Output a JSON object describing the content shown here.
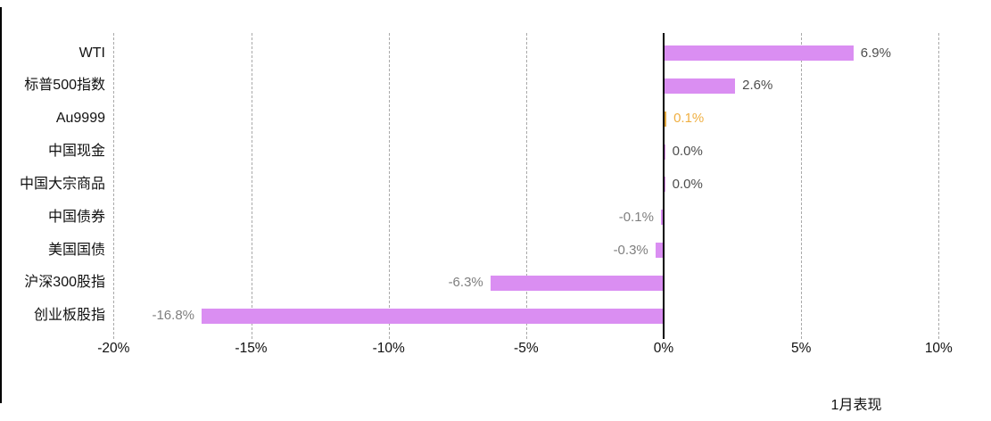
{
  "chart_data": {
    "type": "bar",
    "orientation": "horizontal",
    "title": "",
    "xlabel": "1月表现",
    "ylabel": "",
    "xlim": [
      -20,
      10
    ],
    "grid": "vertical-dashed",
    "legend_position": "none",
    "categories": [
      "WTI",
      "标普500指数",
      "Au9999",
      "中国现金",
      "中国大宗商品",
      "中国债券",
      "美国国债",
      "沪深300股指",
      "创业板股指"
    ],
    "series": [
      {
        "name": "1月表现",
        "values": [
          6.9,
          2.6,
          0.1,
          0.0,
          0.0,
          -0.1,
          -0.3,
          -6.3,
          -16.8
        ]
      }
    ],
    "value_labels": [
      "6.9%",
      "2.6%",
      "0.1%",
      "0.0%",
      "0.0%",
      "-0.1%",
      "-0.3%",
      "-6.3%",
      "-16.8%"
    ],
    "bar_colors": [
      "#DA8EF2",
      "#DA8EF2",
      "#DFA63F",
      "#DA8EF2",
      "#DA8EF2",
      "#DA8EF2",
      "#DA8EF2",
      "#DA8EF2",
      "#DA8EF2"
    ],
    "value_label_colors": [
      "#4d4d4d",
      "#4d4d4d",
      "#EFAF42",
      "#4d4d4d",
      "#4d4d4d",
      "#7f7f7f",
      "#7f7f7f",
      "#7f7f7f",
      "#7f7f7f"
    ],
    "x_ticks": [
      {
        "value": -20,
        "label": "-20%"
      },
      {
        "value": -15,
        "label": "-15%"
      },
      {
        "value": -10,
        "label": "-10%"
      },
      {
        "value": -5,
        "label": "-5%"
      },
      {
        "value": 0,
        "label": "0%"
      },
      {
        "value": 5,
        "label": "5%"
      },
      {
        "value": 10,
        "label": "10%"
      }
    ],
    "colors": {
      "bar_default": "#DA8EF2",
      "bar_highlight": "#DFA63F",
      "gridline": "#A9A9A9",
      "zero_axis": "#000000",
      "text": "#111111"
    }
  }
}
